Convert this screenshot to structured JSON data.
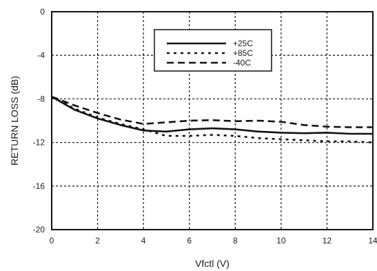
{
  "chart_data": {
    "type": "line",
    "xlabel": "Vfctl (V)",
    "ylabel": "RETURN LOSS (dB)",
    "xlim": [
      0,
      14
    ],
    "ylim": [
      -20,
      0
    ],
    "x_ticks": [
      "0",
      "2",
      "4",
      "6",
      "8",
      "10",
      "12",
      "14"
    ],
    "y_ticks": [
      "0",
      "-4",
      "-8",
      "-12",
      "-16",
      "-20"
    ],
    "grid": true,
    "legend_position": "top-center",
    "series": [
      {
        "name": "+25C",
        "style": "solid",
        "x": [
          0,
          1,
          2,
          3,
          4,
          5,
          6,
          7,
          8,
          9,
          10,
          11,
          12,
          13,
          14
        ],
        "values": [
          -7.8,
          -9.0,
          -9.8,
          -10.4,
          -10.9,
          -11.0,
          -10.8,
          -10.7,
          -10.8,
          -11.0,
          -11.1,
          -11.15,
          -11.1,
          -11.2,
          -11.2
        ]
      },
      {
        "name": "+85C",
        "style": "dotted",
        "x": [
          0,
          1,
          2,
          3,
          4,
          5,
          6,
          7,
          8,
          9,
          10,
          11,
          12,
          13,
          14
        ],
        "values": [
          -7.8,
          -8.9,
          -9.7,
          -10.3,
          -10.8,
          -11.4,
          -11.4,
          -11.3,
          -11.4,
          -11.6,
          -11.7,
          -11.8,
          -11.9,
          -11.9,
          -12.0
        ]
      },
      {
        "name": "-40C",
        "style": "dashed",
        "x": [
          0,
          1,
          2,
          3,
          4,
          5,
          6,
          7,
          8,
          9,
          10,
          11,
          12,
          13,
          14
        ],
        "values": [
          -7.8,
          -8.6,
          -9.3,
          -9.9,
          -10.3,
          -10.15,
          -10.0,
          -9.95,
          -10.05,
          -10.0,
          -10.1,
          -10.4,
          -10.55,
          -10.6,
          -10.6
        ]
      }
    ]
  }
}
